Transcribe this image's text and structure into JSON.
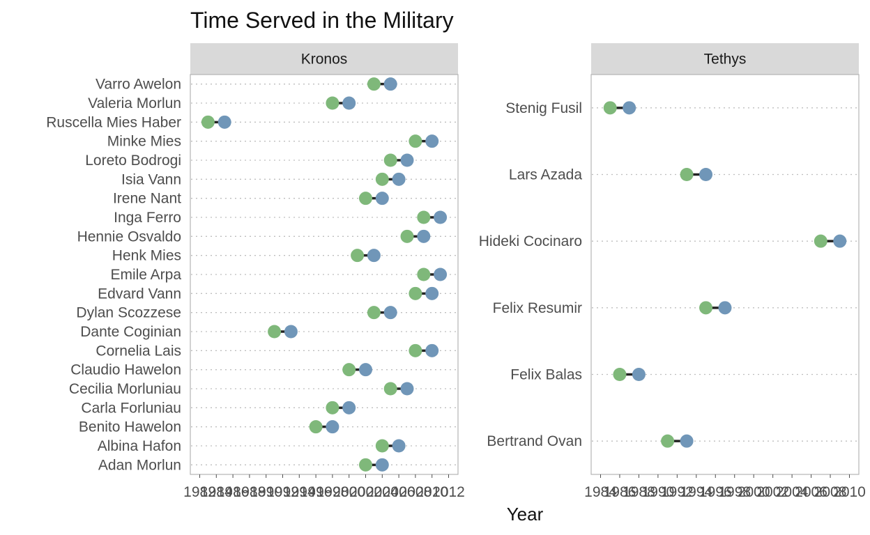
{
  "chart_data": {
    "type": "dumbbell",
    "title": "Time Served in the Military",
    "xlabel": "Year",
    "ylabel": "",
    "grid": "dotted horizontal per row",
    "colors": {
      "start": "#7fb87a",
      "end": "#7096b8",
      "segment": "#222222",
      "strip": "#d9d9d9"
    },
    "panels": [
      {
        "name": "Kronos",
        "xlim": [
          1982,
          2012
        ],
        "xticks": [
          "1982",
          "1984",
          "1986",
          "1988",
          "1990",
          "1992",
          "1994",
          "1996",
          "1998",
          "2000",
          "2002",
          "2004",
          "2006",
          "2008",
          "2010",
          "2012"
        ],
        "rows": [
          {
            "name": "Varro Awelon",
            "start": 2003,
            "end": 2005
          },
          {
            "name": "Valeria Morlun",
            "start": 1998,
            "end": 2000
          },
          {
            "name": "Ruscella Mies Haber",
            "start": 1983,
            "end": 1985
          },
          {
            "name": "Minke Mies",
            "start": 2008,
            "end": 2010
          },
          {
            "name": "Loreto Bodrogi",
            "start": 2005,
            "end": 2007
          },
          {
            "name": "Isia Vann",
            "start": 2004,
            "end": 2006
          },
          {
            "name": "Irene Nant",
            "start": 2002,
            "end": 2004
          },
          {
            "name": "Inga Ferro",
            "start": 2009,
            "end": 2011
          },
          {
            "name": "Hennie Osvaldo",
            "start": 2007,
            "end": 2009
          },
          {
            "name": "Henk Mies",
            "start": 2001,
            "end": 2003
          },
          {
            "name": "Emile Arpa",
            "start": 2009,
            "end": 2011
          },
          {
            "name": "Edvard Vann",
            "start": 2008,
            "end": 2010
          },
          {
            "name": "Dylan Scozzese",
            "start": 2003,
            "end": 2005
          },
          {
            "name": "Dante Coginian",
            "start": 1991,
            "end": 1993
          },
          {
            "name": "Cornelia Lais",
            "start": 2008,
            "end": 2010
          },
          {
            "name": "Claudio Hawelon",
            "start": 2000,
            "end": 2002
          },
          {
            "name": "Cecilia Morluniau",
            "start": 2005,
            "end": 2007
          },
          {
            "name": "Carla Forluniau",
            "start": 1998,
            "end": 2000
          },
          {
            "name": "Benito Hawelon",
            "start": 1996,
            "end": 1998
          },
          {
            "name": "Albina Hafon",
            "start": 2004,
            "end": 2006
          },
          {
            "name": "Adan Morlun",
            "start": 2002,
            "end": 2004
          }
        ]
      },
      {
        "name": "Tethys",
        "xlim": [
          1984,
          2010
        ],
        "xticks": [
          "1984",
          "1986",
          "1988",
          "1990",
          "1992",
          "1994",
          "1996",
          "1998",
          "2000",
          "2002",
          "2004",
          "2006",
          "2008",
          "2010"
        ],
        "rows": [
          {
            "name": "Stenig Fusil",
            "start": 1985,
            "end": 1987
          },
          {
            "name": "Lars Azada",
            "start": 1993,
            "end": 1995
          },
          {
            "name": "Hideki Cocinaro",
            "start": 2007,
            "end": 2009
          },
          {
            "name": "Felix Resumir",
            "start": 1995,
            "end": 1997
          },
          {
            "name": "Felix Balas",
            "start": 1986,
            "end": 1988
          },
          {
            "name": "Bertrand Ovan",
            "start": 1991,
            "end": 1993
          }
        ]
      }
    ]
  }
}
